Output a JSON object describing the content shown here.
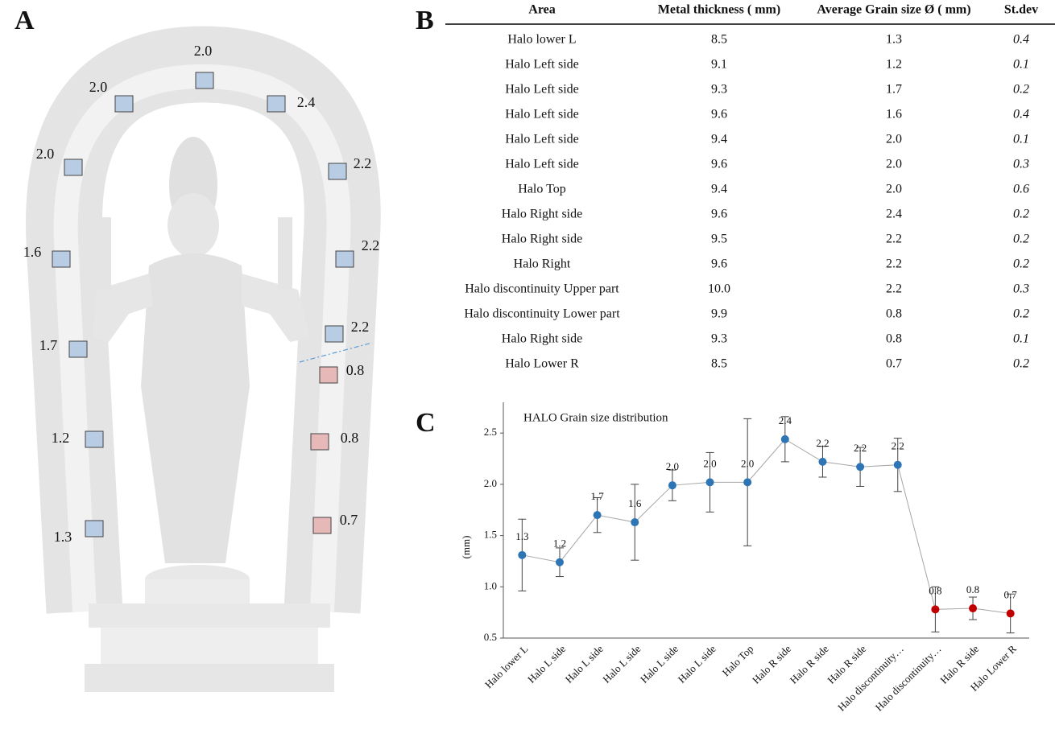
{
  "panel_a": {
    "letter": "A",
    "markers": [
      {
        "label": "2.0",
        "color": "#b8cce4"
      },
      {
        "label": "2.0",
        "color": "#b8cce4"
      },
      {
        "label": "2.4",
        "color": "#b8cce4"
      },
      {
        "label": "2.0",
        "color": "#b8cce4"
      },
      {
        "label": "2.2",
        "color": "#b8cce4"
      },
      {
        "label": "1.6",
        "color": "#b8cce4"
      },
      {
        "label": "2.2",
        "color": "#b8cce4"
      },
      {
        "label": "1.7",
        "color": "#b8cce4"
      },
      {
        "label": "2.2",
        "color": "#b8cce4"
      },
      {
        "label": "0.8",
        "color": "#e6b8b7"
      },
      {
        "label": "1.2",
        "color": "#b8cce4"
      },
      {
        "label": "0.8",
        "color": "#e6b8b7"
      },
      {
        "label": "1.3",
        "color": "#b8cce4"
      },
      {
        "label": "0.7",
        "color": "#e6b8b7"
      }
    ]
  },
  "panel_b": {
    "letter": "B",
    "table": {
      "header": [
        "Area",
        "Metal thickness ( mm)",
        "Average Grain size Ø ( mm)",
        "St.dev"
      ],
      "rows": [
        [
          "Halo lower L",
          "8.5",
          "1.3",
          "0.4"
        ],
        [
          "Halo Left side",
          "9.1",
          "1.2",
          "0.1"
        ],
        [
          "Halo Left side",
          "9.3",
          "1.7",
          "0.2"
        ],
        [
          "Halo Left side",
          "9.6",
          "1.6",
          "0.4"
        ],
        [
          "Halo Left side",
          "9.4",
          "2.0",
          "0.1"
        ],
        [
          "Halo Left side",
          "9.6",
          "2.0",
          "0.3"
        ],
        [
          "Halo Top",
          "9.4",
          "2.0",
          "0.6"
        ],
        [
          "Halo Right side",
          "9.6",
          "2.4",
          "0.2"
        ],
        [
          "Halo Right side",
          "9.5",
          "2.2",
          "0.2"
        ],
        [
          "Halo Right",
          "9.6",
          "2.2",
          "0.2"
        ],
        [
          "Halo  discontinuity Upper part",
          "10.0",
          "2.2",
          "0.3"
        ],
        [
          "Halo  discontinuity Lower part",
          "9.9",
          "0.8",
          "0.2"
        ],
        [
          "Halo Right side",
          "9.3",
          "0.8",
          "0.1"
        ],
        [
          "Halo Lower R",
          "8.5",
          "0.7",
          "0.2"
        ]
      ]
    }
  },
  "panel_c": {
    "letter": "C"
  },
  "chart_data": {
    "type": "line",
    "title": "HALO Grain size distribution",
    "y_label": "(mm)",
    "categories": [
      "Halo lower L",
      "Halo L side",
      "Halo L side",
      "Halo L side",
      "Halo L side",
      "Halo L side",
      "Halo Top",
      "Halo R side",
      "Halo R side",
      "Halo R side",
      "Halo discontinuity…",
      "Halo  discontinuity…",
      "Halo R side",
      "Halo Lower R"
    ],
    "values": [
      1.31,
      1.24,
      1.7,
      1.63,
      1.99,
      2.02,
      2.02,
      2.44,
      2.22,
      2.17,
      2.19,
      0.78,
      0.79,
      0.74
    ],
    "errors": [
      0.35,
      0.14,
      0.17,
      0.37,
      0.15,
      0.29,
      0.62,
      0.22,
      0.15,
      0.19,
      0.26,
      0.22,
      0.11,
      0.19
    ],
    "value_labels": [
      "1.3",
      "1.2",
      "1.7",
      "1.6",
      "2.0",
      "2.0",
      "2.0",
      "2.4",
      "2.2",
      "2.2",
      "2.2",
      "0.8",
      "0.8",
      "0.7"
    ],
    "colors": [
      "#2e75b6",
      "#2e75b6",
      "#2e75b6",
      "#2e75b6",
      "#2e75b6",
      "#2e75b6",
      "#2e75b6",
      "#2e75b6",
      "#2e75b6",
      "#2e75b6",
      "#2e75b6",
      "#c00000",
      "#c00000",
      "#c00000"
    ],
    "line_color": "#a6a6a6",
    "ylim": [
      0.5,
      2.8
    ],
    "yticks": [
      0.5,
      {
        "value": 1,
        "label": "1.0"
      },
      1.5,
      {
        "value": 2,
        "label": "2.0"
      },
      2.5
    ]
  }
}
